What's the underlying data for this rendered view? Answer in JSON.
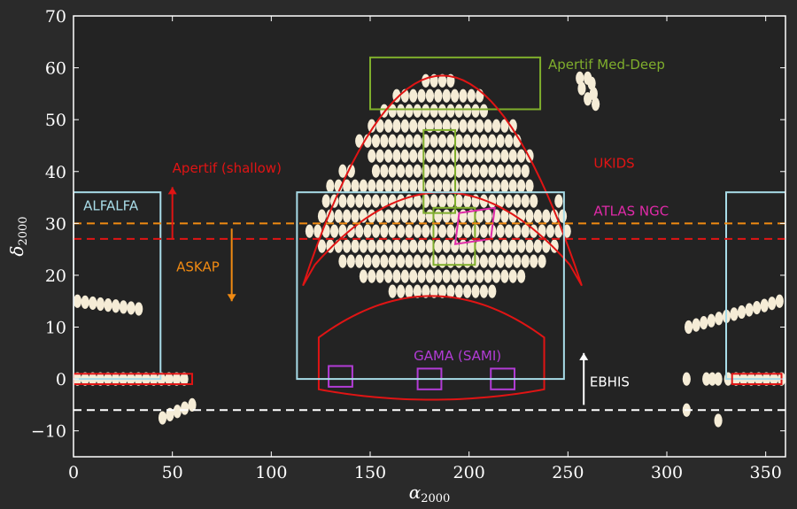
{
  "chart_data": {
    "type": "scatter",
    "xlabel": "α",
    "xlabel_sub": "2000",
    "ylabel": "δ",
    "ylabel_sub": "2000",
    "xlim": [
      0,
      360
    ],
    "ylim": [
      -15,
      70
    ],
    "xticks": [
      0,
      50,
      100,
      150,
      200,
      250,
      300,
      350
    ],
    "yticks": [
      -10,
      0,
      10,
      20,
      30,
      40,
      50,
      60,
      70
    ],
    "grid": false,
    "colors": {
      "background": "#2a2a2a",
      "plot_area": "#232323",
      "pointings": "#f5ecd6",
      "alfalfa": "#a8dce8",
      "apertif_medium_deep": "#7fae2c",
      "ukids": "#e01414",
      "atlas_ngc": "#e02aa8",
      "gama_sami": "#b23cd6",
      "askap": "#f08a12",
      "ebhis": "#ffffff"
    },
    "surveys": [
      {
        "name": "ALFALFA",
        "shape": "rect",
        "color": "alfalfa",
        "regions": [
          [
            0,
            44,
            0,
            36
          ],
          [
            330,
            360,
            0,
            36
          ]
        ]
      },
      {
        "name": "Apertif Med-Deep",
        "shape": "rect",
        "color": "apertif_medium_deep",
        "regions": [
          [
            150,
            236,
            52,
            62
          ],
          [
            177,
            193,
            32,
            48
          ],
          [
            182,
            203,
            22,
            33
          ]
        ]
      },
      {
        "name": "UKIDS",
        "shape": "sky-patch",
        "color": "ukids",
        "regions": [
          {
            "ra_min": 116,
            "ra_max": 257,
            "dec_lo_edge": 26,
            "dec_hi_mid": 58.5,
            "dec_lo_mid": 36
          },
          {
            "ra_min": 124,
            "ra_max": 238,
            "dec_lo_edge": -2,
            "dec_hi_edge": 8,
            "dec_hi_mid": 16,
            "dec_lo_mid": -4
          }
        ]
      },
      {
        "name": "",
        "shape": "rect",
        "color": "ukids",
        "regions": [
          [
            0,
            60,
            -1,
            1
          ],
          [
            333,
            358,
            -1,
            1
          ]
        ]
      },
      {
        "name": "ATLAS NGC",
        "shape": "tilted-rect",
        "color": "atlas_ngc",
        "regions": [
          [
            193,
            26,
            213,
            33
          ]
        ]
      },
      {
        "name": "GAMA (SAMI)",
        "shape": "rect",
        "color": "gama_sami",
        "regions": [
          [
            129,
            141,
            -1.5,
            2.5
          ],
          [
            174,
            186,
            -2,
            2
          ],
          [
            211,
            223,
            -2,
            2
          ]
        ]
      },
      {
        "name": "",
        "shape": "rect",
        "color": "alfalfa",
        "regions": [
          [
            113,
            248,
            0,
            36
          ]
        ]
      }
    ],
    "limits": [
      {
        "name": "Apertif (shallow)",
        "dec": 27,
        "color": "ukids",
        "arrow": "up",
        "arrow_ra": 50,
        "arrow_from": 27,
        "arrow_to": 37
      },
      {
        "name": "ASKAP",
        "dec": 30,
        "color": "askap",
        "arrow": "down",
        "arrow_ra": 80,
        "arrow_from": 29,
        "arrow_to": 15
      },
      {
        "name": "EBHIS",
        "dec": -6,
        "color": "ebhis",
        "arrow": "up",
        "arrow_ra": 258,
        "arrow_from": -5,
        "arrow_to": 5
      }
    ],
    "pointing_groups": [
      {
        "name": "north-blob",
        "kind": "blob",
        "ra": [
          113,
          265
        ],
        "dec": [
          14,
          58
        ],
        "dx": 4.2,
        "dy": 2.9
      },
      {
        "name": "row-dec-15-left",
        "kind": "row",
        "ra_start": 2,
        "ra_end": 33,
        "dec_start": 15,
        "dec_end": 13.5,
        "count": 9
      },
      {
        "name": "row-dec-0-left",
        "kind": "row",
        "ra_start": 2,
        "ra_end": 56,
        "dec_start": 0,
        "dec_end": 0,
        "count": 15
      },
      {
        "name": "row-dec-neg6",
        "kind": "row",
        "ra_start": 45,
        "ra_end": 60,
        "dec_start": -7.5,
        "dec_end": -5,
        "count": 5
      },
      {
        "name": "arc-right",
        "kind": "row",
        "ra_start": 311,
        "ra_end": 357,
        "dec_start": 10,
        "dec_end": 15,
        "count": 13
      },
      {
        "name": "row-dec-0-right",
        "kind": "row",
        "ra_start": 335,
        "ra_end": 358,
        "dec_start": 0,
        "dec_end": 0,
        "count": 7
      },
      {
        "name": "misc-right",
        "kind": "points",
        "points": [
          [
            310,
            0
          ],
          [
            310,
            -6
          ],
          [
            320,
            0
          ],
          [
            323,
            0
          ],
          [
            326,
            0
          ],
          [
            326,
            -8
          ],
          [
            331,
            0
          ]
        ]
      },
      {
        "name": "misc-north",
        "kind": "points",
        "points": [
          [
            256,
            58
          ],
          [
            260,
            58
          ],
          [
            257,
            56
          ],
          [
            262,
            57
          ],
          [
            263,
            55
          ],
          [
            260,
            54
          ],
          [
            264,
            53
          ]
        ]
      }
    ]
  }
}
